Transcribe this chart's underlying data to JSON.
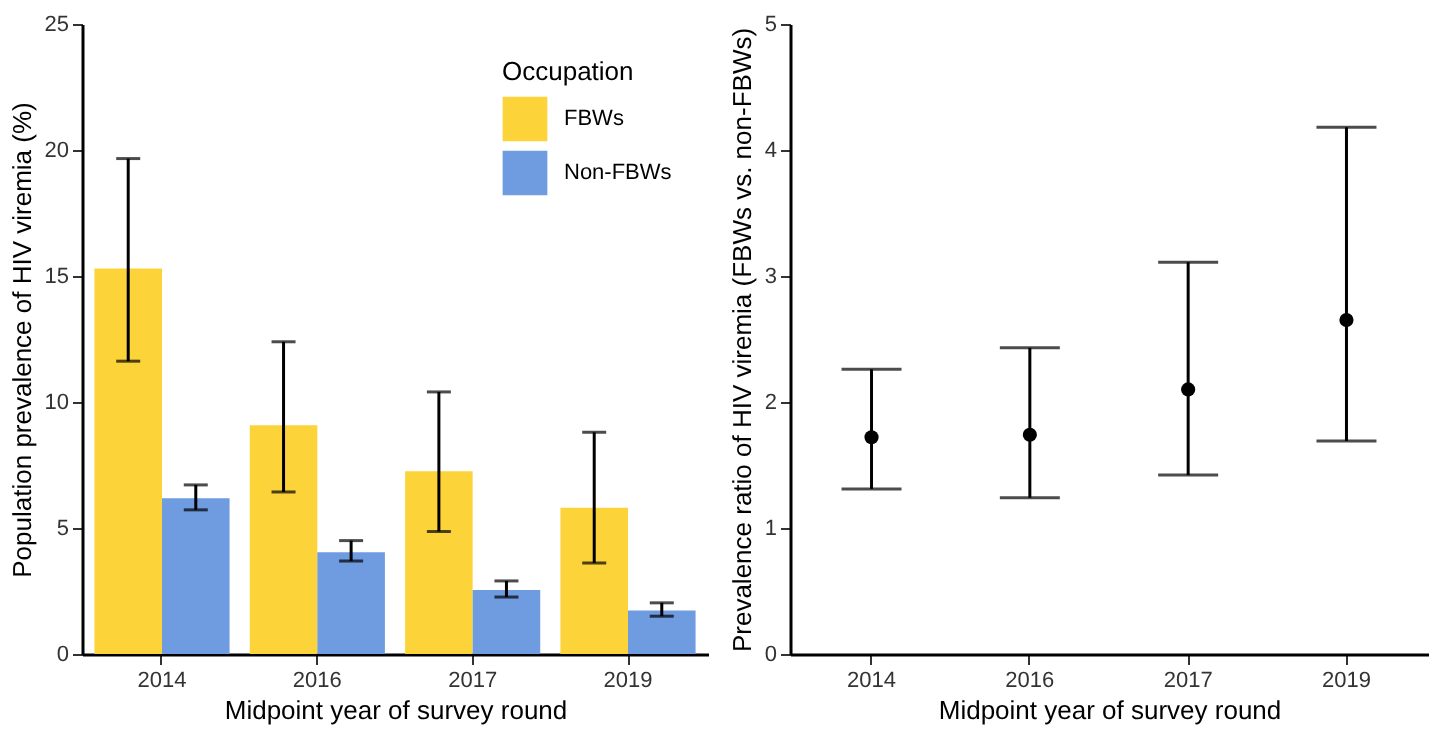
{
  "chart_data": [
    {
      "type": "bar",
      "categories": [
        "2014",
        "2016",
        "2017",
        "2019"
      ],
      "xlabel": "Midpoint year of survey round",
      "ylabel": "Population prevalence of HIV viremia (%)",
      "ylim": [
        0,
        25
      ],
      "yticks": [
        0,
        5,
        10,
        15,
        20,
        25
      ],
      "legend": "top right",
      "legend_title": "Occupation",
      "series": [
        {
          "name": "FBWs",
          "color": "#fdd33a",
          "values": [
            15.3,
            9.08,
            7.25,
            5.8
          ],
          "errors": [
            [
              11.62,
              19.66
            ],
            [
              6.43,
              12.39
            ],
            [
              4.86,
              10.4
            ],
            [
              3.61,
              8.8
            ]
          ]
        },
        {
          "name": "Non-FBWs",
          "color": "#6f9be0",
          "values": [
            6.18,
            4.04,
            2.54,
            1.73
          ],
          "errors": [
            [
              5.72,
              6.71
            ],
            [
              3.69,
              4.5
            ],
            [
              2.26,
              2.9
            ],
            [
              1.5,
              2.03
            ]
          ]
        }
      ]
    },
    {
      "type": "scatter",
      "categories": [
        "2014",
        "2016",
        "2017",
        "2019"
      ],
      "xlabel": "Midpoint year of survey round",
      "ylabel": "Prevalence ratio of HIV viremia (FBWs vs. non-FBWs)",
      "ylim": [
        0,
        5
      ],
      "yticks": [
        0,
        1,
        2,
        3,
        4,
        5
      ],
      "marker": "circle",
      "series": [
        {
          "color": "#000000",
          "values": [
            1.72,
            1.74,
            2.1,
            2.65
          ],
          "errors": [
            [
              1.31,
              2.26
            ],
            [
              1.24,
              2.43
            ],
            [
              1.42,
              3.11
            ],
            [
              1.69,
              4.18
            ]
          ]
        }
      ]
    }
  ]
}
